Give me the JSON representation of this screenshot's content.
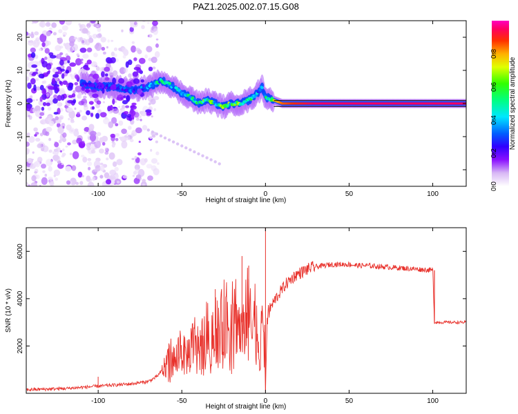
{
  "title": "PAZ1.2025.002.07.15.G08",
  "chart_data": [
    {
      "type": "heatmap",
      "xlabel": "Height of straight line (km)",
      "ylabel": "Frequency (Hz)",
      "xlim": [
        -143,
        120
      ],
      "ylim": [
        -25,
        25
      ],
      "x_ticks": [
        "-100",
        "-50",
        "0",
        "50",
        "100"
      ],
      "x_tick_values": [
        -100,
        -50,
        0,
        50,
        100
      ],
      "y_ticks": [
        "-20",
        "-10",
        "0",
        "10",
        "20"
      ],
      "y_tick_values": [
        -20,
        -10,
        0,
        10,
        20
      ],
      "colorbar": {
        "label": "Normalized spectral amplitude",
        "range": [
          0,
          1
        ],
        "ticks": [
          "0.0",
          "0.2",
          "0.4",
          "0.6",
          "0.8"
        ],
        "tick_values": [
          0.0,
          0.2,
          0.4,
          0.6,
          0.8
        ],
        "colormap": [
          "#ffffff",
          "#c8a0f0",
          "#7f00ff",
          "#0000ff",
          "#00ffff",
          "#00ff00",
          "#ffff00",
          "#ff7f00",
          "#ff0000",
          "#ff00ff"
        ]
      },
      "ridge": {
        "name": "",
        "x": [
          -110,
          -100,
          -90,
          -80,
          -70,
          -62,
          -55,
          -50,
          -45,
          -40,
          -35,
          -30,
          -25,
          -20,
          -15,
          -10,
          -5,
          -2,
          0,
          5,
          10,
          20,
          30,
          50,
          80,
          120
        ],
        "y": [
          6,
          5,
          5,
          4,
          5,
          7,
          5,
          3,
          2,
          0,
          1,
          0,
          -1,
          0,
          0,
          1,
          3,
          5,
          2,
          1,
          0,
          0,
          0,
          0,
          0,
          0
        ],
        "amplitude": [
          0.3,
          0.3,
          0.3,
          0.35,
          0.4,
          0.55,
          0.5,
          0.45,
          0.55,
          0.6,
          0.65,
          0.6,
          0.7,
          0.65,
          0.7,
          0.6,
          0.5,
          0.45,
          0.6,
          0.75,
          0.85,
          0.9,
          0.95,
          0.95,
          0.95,
          0.95
        ]
      },
      "notes_noise_region_x": [
        -143,
        -70
      ]
    },
    {
      "type": "line",
      "xlabel": "Height of straight line (km)",
      "ylabel": "SNR (10 * v/v)",
      "xlim": [
        -143,
        120
      ],
      "ylim": [
        0,
        7000
      ],
      "x_ticks": [
        "-100",
        "-50",
        "0",
        "50",
        "100"
      ],
      "x_tick_values": [
        -100,
        -50,
        0,
        50,
        100
      ],
      "y_ticks": [
        "2000",
        "4000",
        "6000"
      ],
      "y_tick_values": [
        2000,
        4000,
        6000
      ],
      "color": "#e8302a",
      "series": [
        {
          "name": "",
          "x": [
            -143,
            -130,
            -120,
            -110,
            -100,
            -90,
            -80,
            -70,
            -65,
            -60,
            -57,
            -54,
            -51,
            -48,
            -45,
            -42,
            -39,
            -36,
            -33,
            -30,
            -27,
            -24,
            -21,
            -18,
            -15,
            -12,
            -9,
            -6,
            -3,
            -1,
            0,
            1,
            3,
            6,
            9,
            12,
            15,
            18,
            21,
            24,
            27,
            30,
            35,
            40,
            45,
            50,
            55,
            60,
            70,
            80,
            90,
            100,
            101,
            102,
            110,
            120
          ],
          "y": [
            150,
            180,
            200,
            250,
            300,
            350,
            400,
            500,
            700,
            1100,
            1600,
            1300,
            2000,
            1500,
            1800,
            2300,
            1900,
            2600,
            2400,
            2900,
            2700,
            3300,
            2800,
            3500,
            2600,
            3800,
            3000,
            3300,
            1500,
            4500,
            150,
            3200,
            3600,
            4000,
            4300,
            4600,
            4800,
            5000,
            5100,
            5200,
            5300,
            5350,
            5400,
            5450,
            5450,
            5450,
            5400,
            5400,
            5350,
            5300,
            5250,
            5200,
            3000,
            3000,
            3000,
            3000
          ],
          "spikes": [
            {
              "x": -100,
              "y": 700
            },
            {
              "x": -30,
              "y": 4400
            },
            {
              "x": -14,
              "y": 5800
            },
            {
              "x": -10,
              "y": 5400
            },
            {
              "x": 0,
              "y": 7000
            },
            {
              "x": 1,
              "y": 150
            }
          ]
        }
      ],
      "grid": false
    }
  ]
}
